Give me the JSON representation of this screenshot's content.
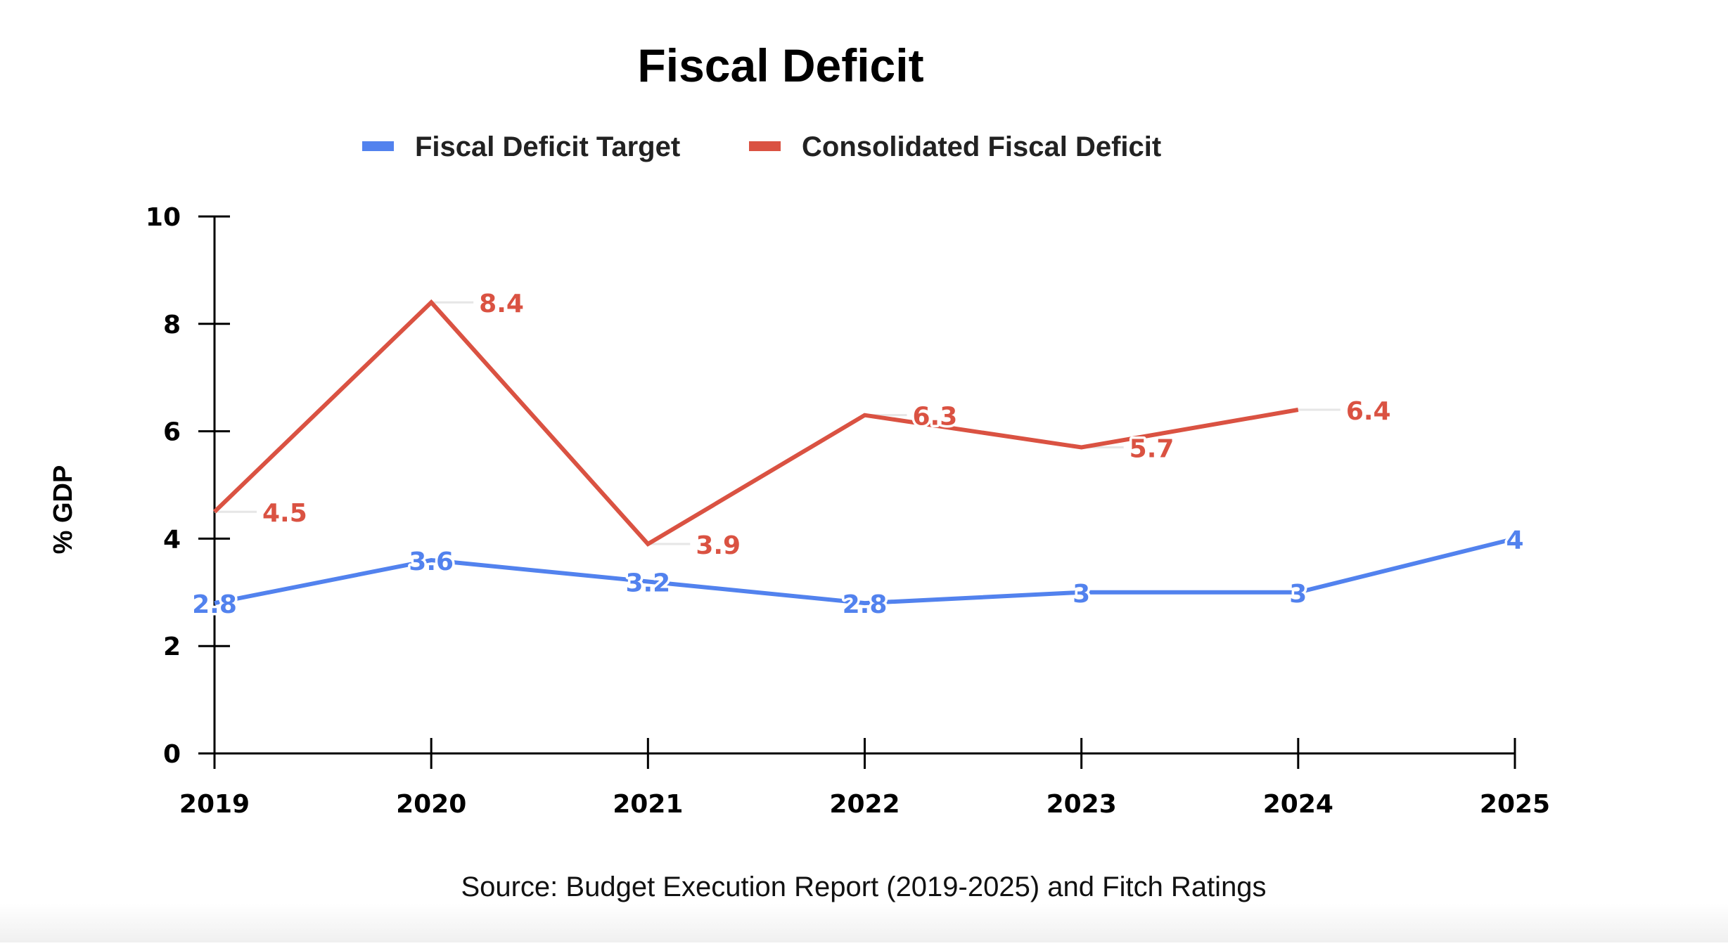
{
  "chart_data": {
    "type": "line",
    "title": "Fiscal Deficit",
    "xlabel": "",
    "ylabel": "% GDP",
    "categories": [
      "2019",
      "2020",
      "2021",
      "2022",
      "2023",
      "2024",
      "2025"
    ],
    "ylim": [
      0,
      10
    ],
    "yticks": [
      0,
      2,
      4,
      6,
      8,
      10
    ],
    "grid": false,
    "legend_position": "top-center",
    "series": [
      {
        "name": "Fiscal Deficit Target",
        "color": "#5282EE",
        "values": [
          2.8,
          3.6,
          3.2,
          2.8,
          3,
          3,
          4
        ],
        "labels": [
          "2.8",
          "3.6",
          "3.2",
          "2.8",
          "3",
          "3",
          "4"
        ],
        "label_style": "centered-on-point"
      },
      {
        "name": "Consolidated Fiscal Deficit",
        "color": "#DA5242",
        "values": [
          4.5,
          8.4,
          3.9,
          6.3,
          5.7,
          6.4,
          null
        ],
        "labels": [
          "4.5",
          "8.4",
          "3.9",
          "6.3",
          "5.7",
          "6.4",
          null
        ],
        "label_style": "right-with-leader"
      }
    ],
    "source": "Source: Budget Execution Report (2019-2025) and Fitch Ratings"
  },
  "colors": {
    "axis": "#000000",
    "leader_line": "#E6E6E6",
    "legend_text": "#222222"
  }
}
